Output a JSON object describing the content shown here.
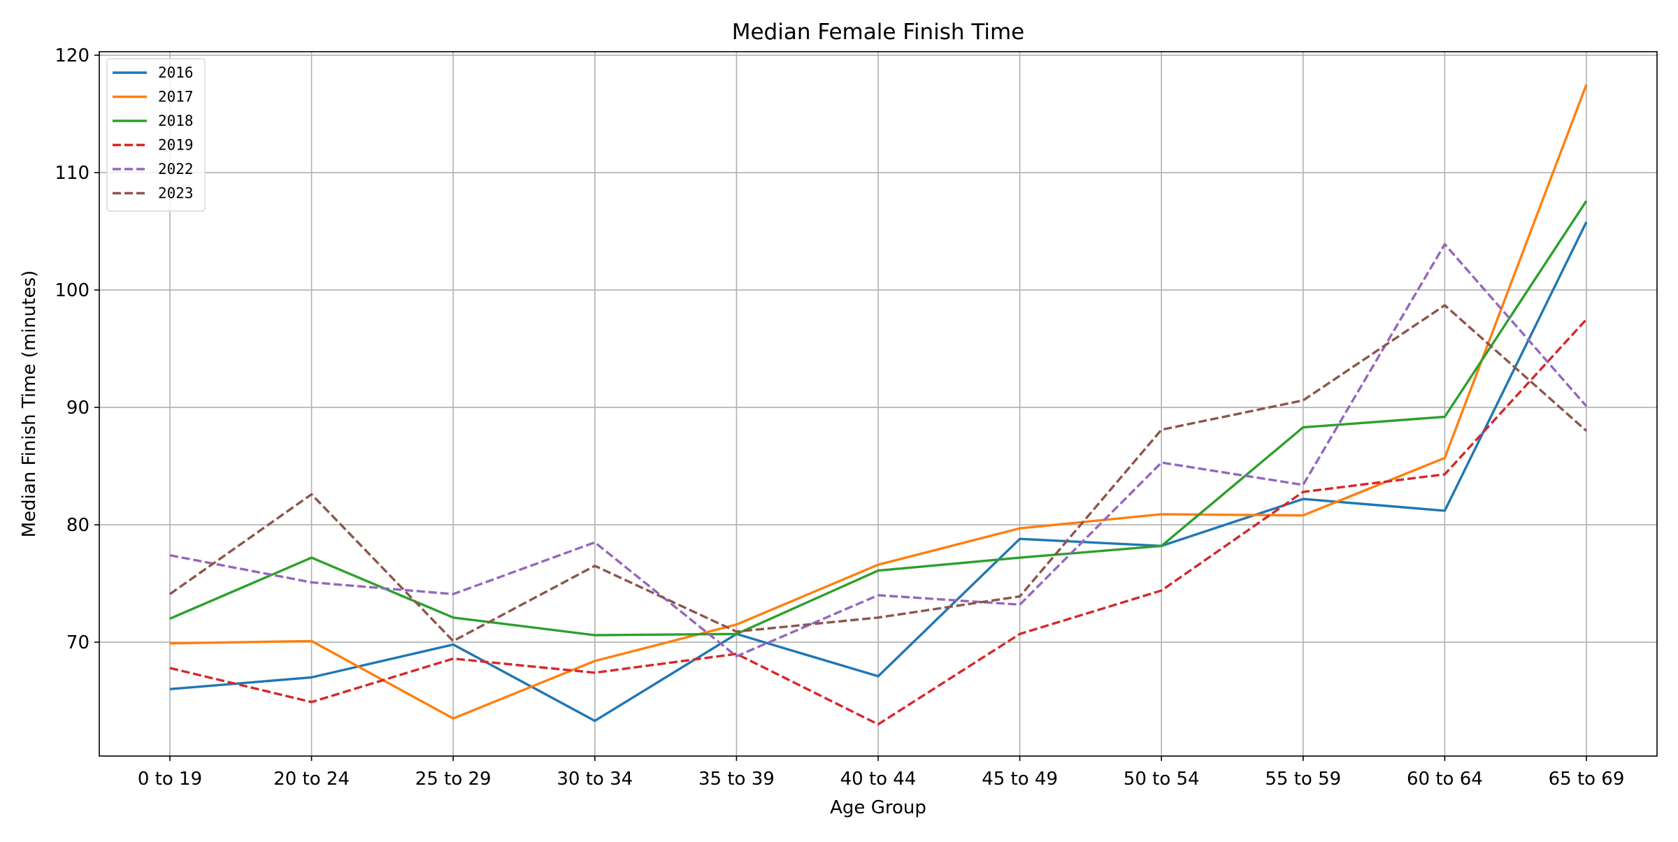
{
  "chart_data": {
    "type": "line",
    "title": "Median Female Finish Time",
    "xlabel": "Age Group",
    "ylabel": "Median Finish Time (minutes)",
    "categories": [
      "0 to 19",
      "20 to 24",
      "25 to 29",
      "30 to 34",
      "35 to 39",
      "40 to 44",
      "45 to 49",
      "50 to 54",
      "55 to 59",
      "60 to 64",
      "65 to 69"
    ],
    "ylim": [
      60.3,
      120.3
    ],
    "yticks": [
      70,
      80,
      90,
      100,
      110,
      120
    ],
    "grid": true,
    "legend_position": "top-left",
    "series": [
      {
        "name": "2016",
        "color": "#1f77b4",
        "style": "solid",
        "values": [
          66.0,
          67.0,
          69.8,
          63.3,
          70.7,
          67.1,
          78.8,
          78.2,
          82.2,
          81.2,
          105.8
        ]
      },
      {
        "name": "2017",
        "color": "#ff7f0e",
        "style": "solid",
        "values": [
          69.9,
          70.1,
          63.5,
          68.4,
          71.5,
          76.6,
          79.7,
          80.9,
          80.8,
          85.7,
          117.5
        ]
      },
      {
        "name": "2018",
        "color": "#2ca02c",
        "style": "solid",
        "values": [
          72.0,
          77.2,
          72.1,
          70.6,
          70.7,
          76.1,
          77.2,
          78.2,
          88.3,
          89.2,
          107.6
        ]
      },
      {
        "name": "2019",
        "color": "#d62728",
        "style": "dashed",
        "values": [
          67.8,
          64.9,
          68.6,
          67.4,
          69.0,
          63.0,
          70.7,
          74.4,
          82.8,
          84.3,
          97.5
        ]
      },
      {
        "name": "2022",
        "color": "#9467bd",
        "style": "dashed",
        "values": [
          77.4,
          75.1,
          74.1,
          78.5,
          68.8,
          74.0,
          73.2,
          85.3,
          83.4,
          103.9,
          90.1
        ]
      },
      {
        "name": "2023",
        "color": "#8c564b",
        "style": "dashed",
        "values": [
          74.1,
          82.6,
          70.1,
          76.5,
          70.9,
          72.1,
          73.9,
          88.1,
          90.6,
          98.7,
          88.0
        ]
      }
    ]
  }
}
